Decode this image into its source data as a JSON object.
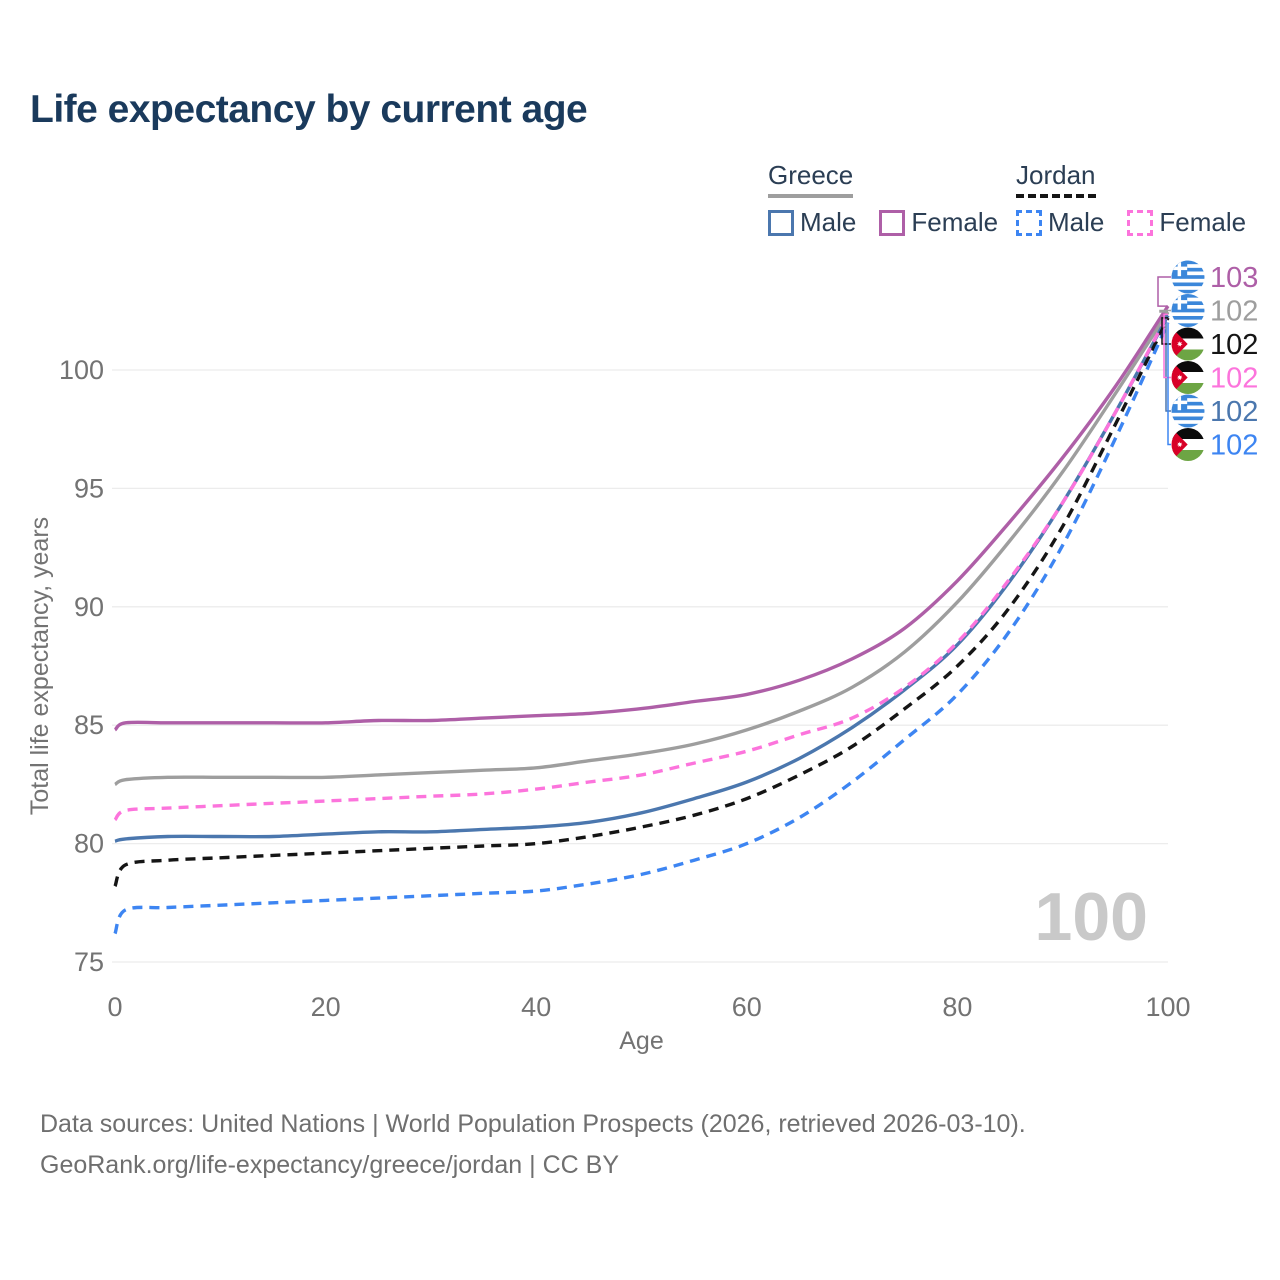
{
  "title": "Life expectancy by current age",
  "legend": {
    "groups": [
      {
        "label": "Greece",
        "line_style": "solid",
        "line_color": "#9e9e9e",
        "items": [
          {
            "label": "Male",
            "color": "#4b77ae",
            "line_style": "solid"
          },
          {
            "label": "Female",
            "color": "#ae5fa7",
            "line_style": "solid"
          }
        ]
      },
      {
        "label": "Jordan",
        "line_style": "dashed",
        "line_color": "#151515",
        "items": [
          {
            "label": "Male",
            "color": "#3d85f2",
            "line_style": "dashed"
          },
          {
            "label": "Female",
            "color": "#fc74dc",
            "line_style": "dashed"
          }
        ]
      }
    ]
  },
  "watermark": "100",
  "footer": {
    "line1": "Data sources: United Nations | World Population Prospects (2026, retrieved 2026-03-10).",
    "line2": "GeoRank.org/life-expectancy/greece/jordan | CC BY"
  },
  "chart_data": {
    "type": "line",
    "title": "Life expectancy by current age",
    "xlabel": "Age",
    "ylabel": "Total life expectancy, years",
    "xlim": [
      0,
      100
    ],
    "ylim": [
      74.8,
      103.2
    ],
    "xticks": [
      0,
      20,
      40,
      60,
      80,
      100
    ],
    "yticks": [
      75,
      80,
      85,
      90,
      95,
      100
    ],
    "grid": true,
    "legend_position": "top-right",
    "x": [
      0,
      1,
      5,
      10,
      15,
      20,
      25,
      30,
      35,
      40,
      45,
      50,
      55,
      60,
      65,
      70,
      75,
      80,
      85,
      90,
      95,
      100
    ],
    "series": [
      {
        "name": "Greece Total",
        "country": "Greece",
        "sex": "Total",
        "color": "#9e9e9e",
        "dashed": false,
        "flag": "greece",
        "end_label": "102",
        "label_row": 1,
        "values": [
          82.5,
          82.7,
          82.8,
          82.8,
          82.8,
          82.8,
          82.9,
          83.0,
          83.1,
          83.2,
          83.5,
          83.8,
          84.2,
          84.8,
          85.6,
          86.6,
          88.1,
          90.2,
          92.8,
          95.7,
          99.0,
          102.45
        ]
      },
      {
        "name": "Greece Female",
        "country": "Greece",
        "sex": "Female",
        "color": "#ae5fa7",
        "dashed": false,
        "flag": "greece",
        "end_label": "103",
        "label_row": 0,
        "values": [
          84.8,
          85.1,
          85.1,
          85.1,
          85.1,
          85.1,
          85.2,
          85.2,
          85.3,
          85.4,
          85.5,
          85.7,
          86.0,
          86.3,
          86.9,
          87.8,
          89.1,
          91.1,
          93.6,
          96.3,
          99.3,
          102.7
        ]
      },
      {
        "name": "Greece Male",
        "country": "Greece",
        "sex": "Male",
        "color": "#4b77ae",
        "dashed": false,
        "flag": "greece",
        "end_label": "102",
        "label_row": 4,
        "values": [
          80.1,
          80.2,
          80.3,
          80.3,
          80.3,
          80.4,
          80.5,
          80.5,
          80.6,
          80.7,
          80.9,
          81.3,
          81.9,
          82.6,
          83.6,
          84.9,
          86.5,
          88.4,
          91.1,
          94.4,
          98.2,
          102.3
        ]
      },
      {
        "name": "Jordan Total",
        "country": "Jordan",
        "sex": "Total",
        "color": "#151515",
        "dashed": true,
        "flag": "jordan",
        "end_label": "102",
        "label_row": 2,
        "values": [
          78.2,
          79.1,
          79.3,
          79.4,
          79.5,
          79.6,
          79.7,
          79.8,
          79.9,
          80.0,
          80.3,
          80.7,
          81.2,
          81.9,
          82.9,
          84.1,
          85.7,
          87.5,
          90.0,
          93.4,
          97.7,
          102.2
        ]
      },
      {
        "name": "Jordan Female",
        "country": "Jordan",
        "sex": "Female",
        "color": "#fc74dc",
        "dashed": true,
        "flag": "jordan",
        "end_label": "102",
        "label_row": 3,
        "values": [
          81.0,
          81.4,
          81.5,
          81.6,
          81.7,
          81.8,
          81.9,
          82.0,
          82.1,
          82.3,
          82.6,
          82.9,
          83.4,
          83.9,
          84.6,
          85.3,
          86.6,
          88.5,
          91.2,
          94.4,
          98.2,
          102.35
        ]
      },
      {
        "name": "Jordan Male",
        "country": "Jordan",
        "sex": "Male",
        "color": "#3d85f2",
        "dashed": true,
        "flag": "jordan",
        "end_label": "102",
        "label_row": 5,
        "values": [
          76.2,
          77.2,
          77.3,
          77.4,
          77.5,
          77.6,
          77.7,
          77.8,
          77.9,
          78.0,
          78.3,
          78.7,
          79.3,
          80.0,
          81.1,
          82.6,
          84.4,
          86.3,
          89.0,
          92.6,
          97.1,
          102.0
        ]
      }
    ]
  }
}
